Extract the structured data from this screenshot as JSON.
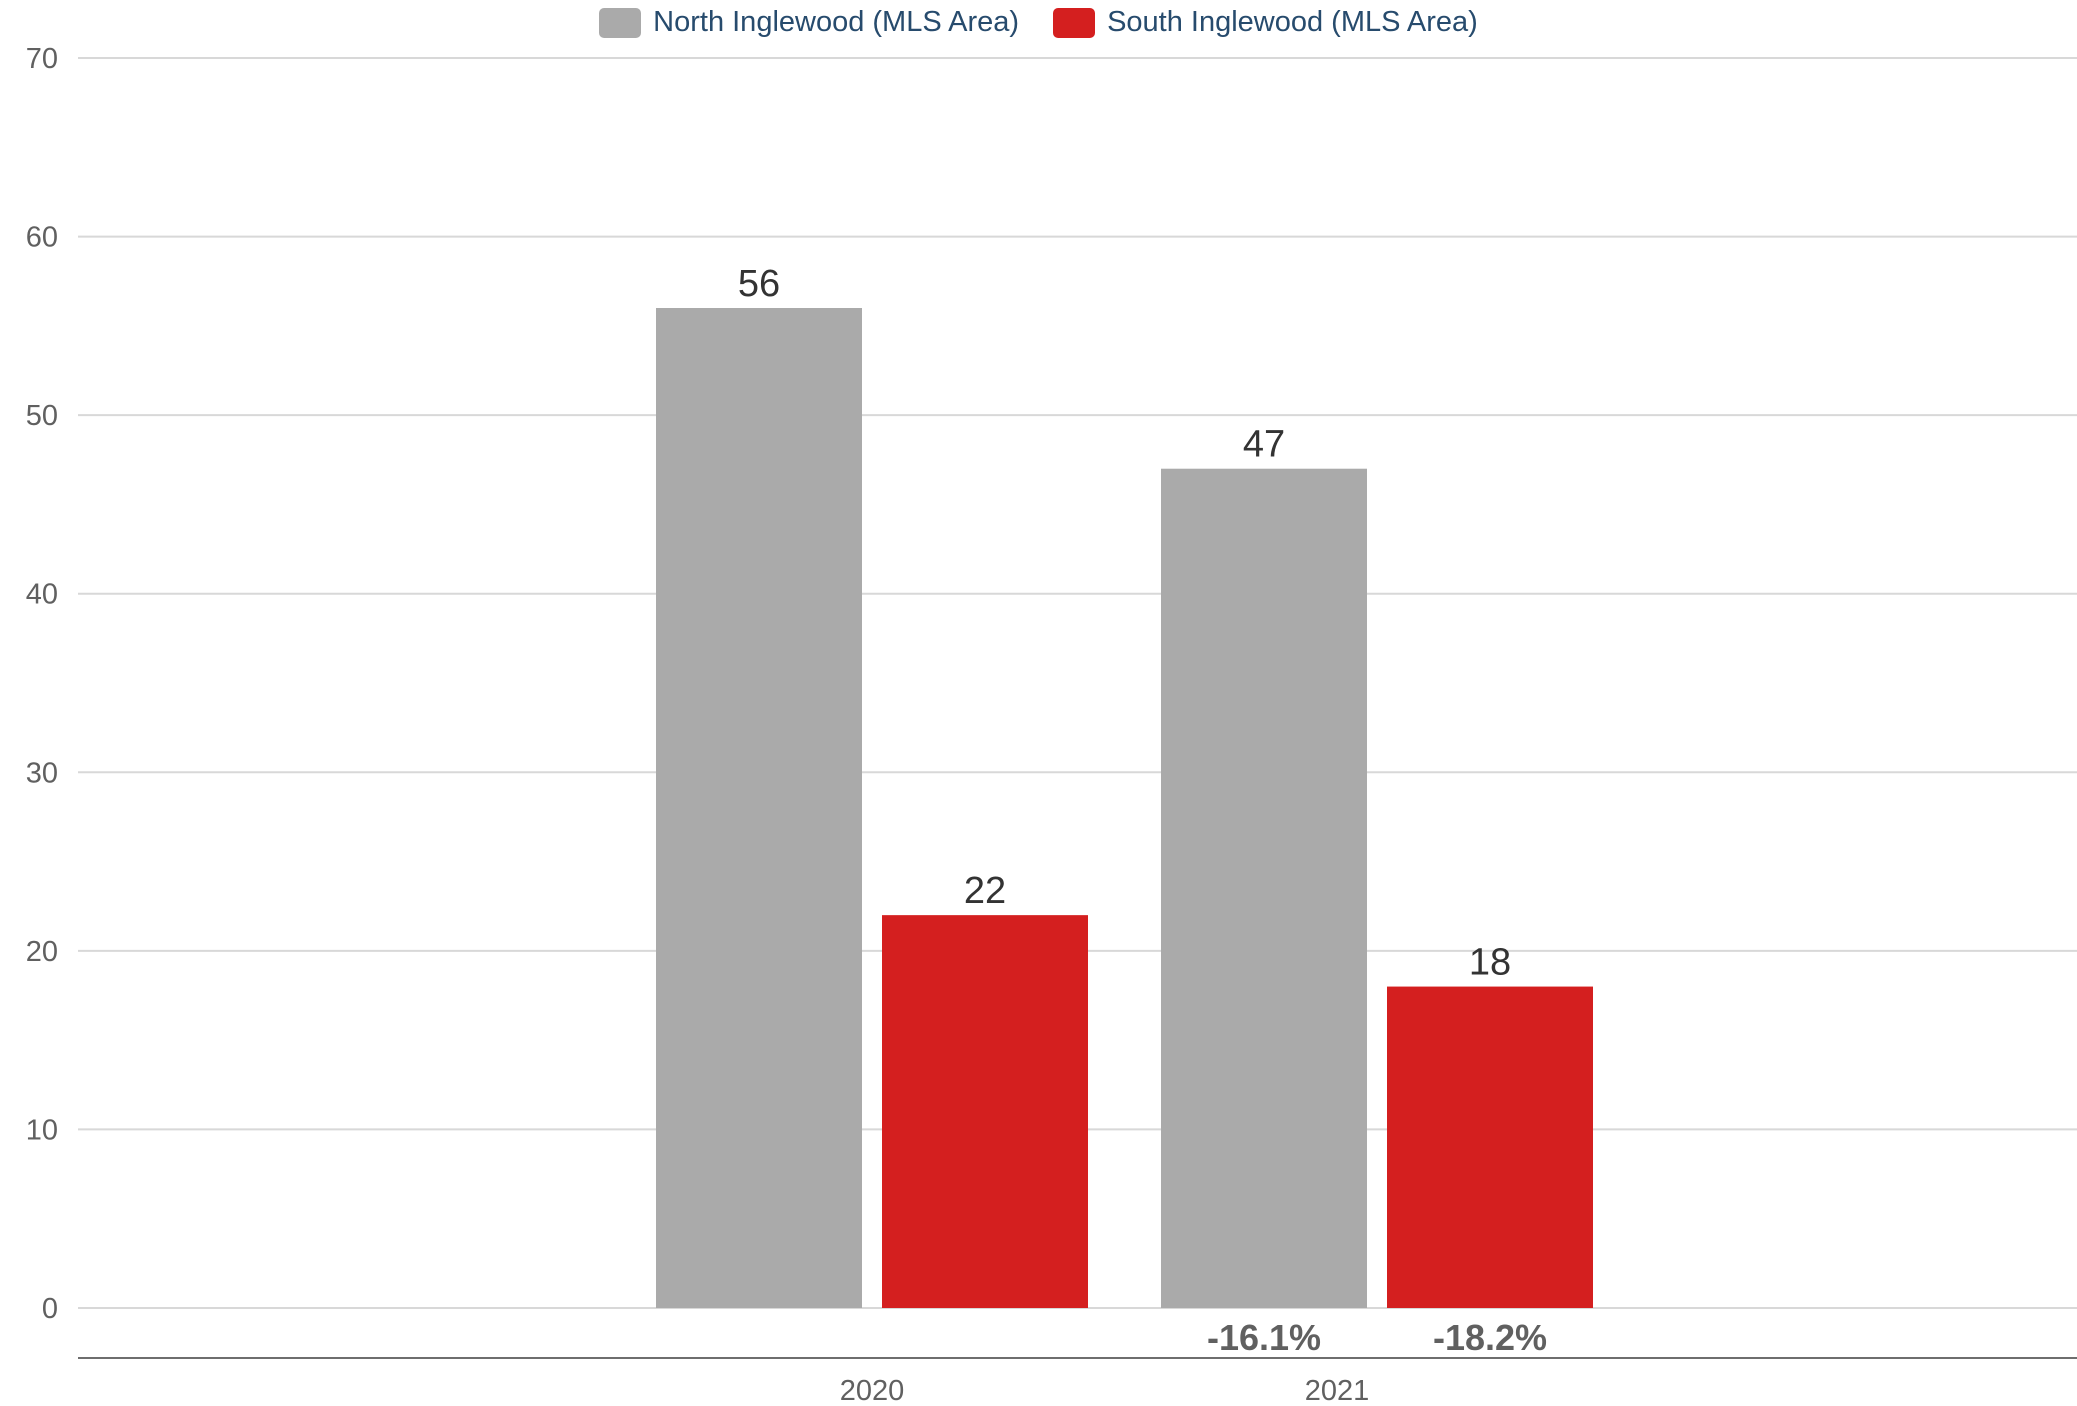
{
  "legend": [
    {
      "label": "North Inglewood (MLS Area)",
      "color": "#aaaaaa"
    },
    {
      "label": "South Inglewood (MLS Area)",
      "color": "#d41f1f"
    }
  ],
  "chart_data": {
    "type": "bar",
    "title": "",
    "xlabel": "",
    "ylabel": "",
    "categories": [
      "2020",
      "2021"
    ],
    "ylim": [
      0,
      70
    ],
    "yticks": [
      0,
      10,
      20,
      30,
      40,
      50,
      60,
      70
    ],
    "grid": true,
    "legend_position": "top-center",
    "series": [
      {
        "name": "North Inglewood (MLS Area)",
        "color": "#aaaaaa",
        "values": [
          56,
          47
        ],
        "changes": [
          "",
          "-16.1%"
        ]
      },
      {
        "name": "South Inglewood (MLS Area)",
        "color": "#d41f1f",
        "values": [
          22,
          18
        ],
        "changes": [
          "",
          "-18.2%"
        ]
      }
    ]
  }
}
